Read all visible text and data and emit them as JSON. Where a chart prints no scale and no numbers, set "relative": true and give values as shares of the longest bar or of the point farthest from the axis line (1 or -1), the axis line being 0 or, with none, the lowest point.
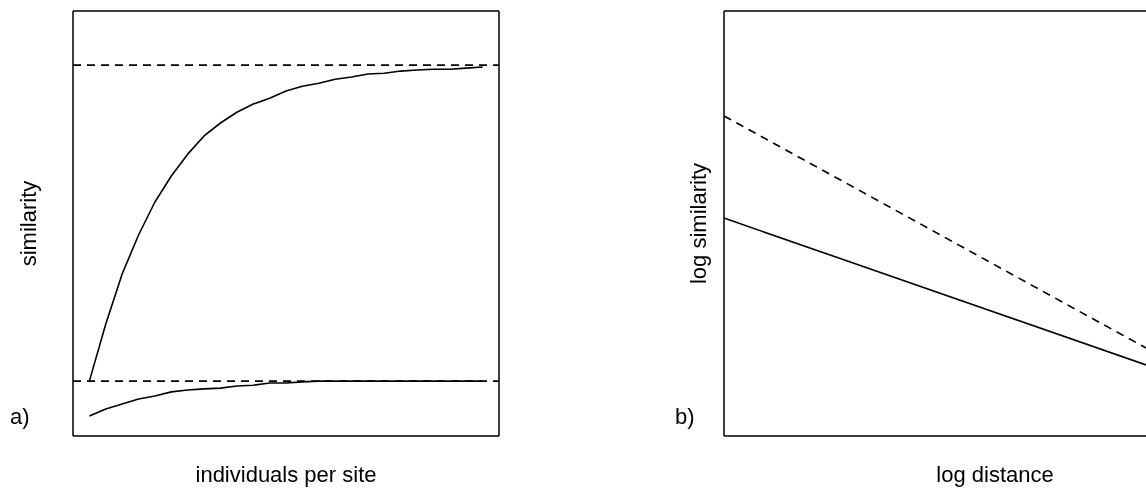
{
  "chart_data": [
    {
      "type": "line",
      "relative": true,
      "xlabel": "individuals per site",
      "ylabel": "similarity",
      "annotations": [
        "a)"
      ],
      "legend": false,
      "marker": "none",
      "categories": [
        null,
        null,
        null,
        null,
        null,
        null,
        null,
        null,
        null,
        null,
        null,
        null,
        null,
        null,
        null,
        null,
        null,
        null,
        null,
        null,
        null,
        null,
        null,
        null,
        null,
        null,
        null
      ],
      "series": [
        {
          "color": "#000000",
          "line_style": "dashed",
          "values": [
            1,
            null,
            null,
            null,
            null,
            null,
            null,
            null,
            null,
            null,
            null,
            null,
            null,
            null,
            null,
            null,
            null,
            null,
            null,
            null,
            null,
            null,
            null,
            null,
            null,
            null,
            1
          ]
        },
        {
          "color": "#000000",
          "line_style": "dashed",
          "values": [
            0.148,
            null,
            null,
            null,
            null,
            null,
            null,
            null,
            null,
            null,
            null,
            null,
            null,
            null,
            null,
            null,
            null,
            null,
            null,
            null,
            null,
            null,
            null,
            null,
            null,
            null,
            0.148
          ]
        },
        {
          "color": "#000000",
          "line_style": "solid",
          "values": [
            null,
            0.148,
            0.302,
            0.437,
            0.542,
            0.631,
            0.701,
            0.76,
            0.809,
            0.844,
            0.873,
            0.895,
            0.911,
            0.93,
            0.943,
            0.951,
            0.962,
            0.968,
            0.976,
            0.978,
            0.984,
            0.987,
            0.989,
            0.989,
            0.992,
            0.995,
            null
          ]
        },
        {
          "color": "#000000",
          "line_style": "solid",
          "values": [
            null,
            0.054,
            0.073,
            0.086,
            0.1,
            0.108,
            0.119,
            0.124,
            0.127,
            0.129,
            0.135,
            0.137,
            0.143,
            0.143,
            0.146,
            0.148,
            0.148,
            0.148,
            0.148,
            0.148,
            0.148,
            0.148,
            0.148,
            0.148,
            0.148,
            0.148,
            null
          ]
        }
      ]
    },
    {
      "type": "line",
      "relative": true,
      "xlabel": "log distance",
      "ylabel": "log similarity",
      "annotations": [
        "b)"
      ],
      "legend": false,
      "marker": "none",
      "categories": [
        null,
        null
      ],
      "series": [
        {
          "color": "#000000",
          "line_style": "dashed",
          "values": [
            1,
            0.275
          ]
        },
        {
          "color": "#000000",
          "line_style": "solid",
          "values": [
            0.681,
            0.222
          ]
        }
      ]
    }
  ]
}
